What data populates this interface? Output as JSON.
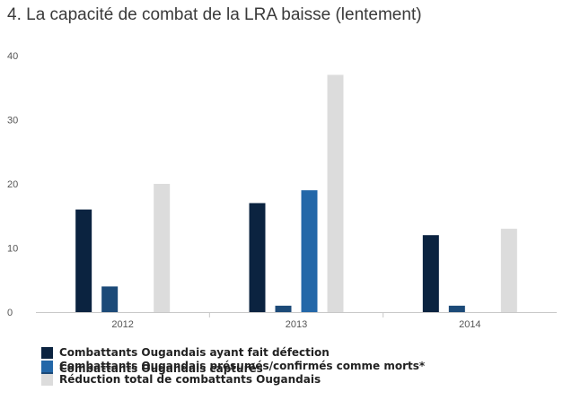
{
  "chart_data": {
    "type": "bar",
    "title": "4. La capacité de combat de la LRA baisse (lentement)",
    "categories": [
      "2012",
      "2013",
      "2014"
    ],
    "ylim": [
      0,
      40
    ],
    "yticks": [
      0,
      10,
      20,
      30,
      40
    ],
    "grid": false,
    "legend_position": "bottom",
    "series": [
      {
        "name": "Combattants Ougandais ayant fait défection",
        "color": "#0b2340",
        "values": [
          16,
          17,
          12
        ]
      },
      {
        "name": "Combattants Ougandais capturés",
        "color": "#1c4a78",
        "values": [
          4,
          1,
          1
        ]
      },
      {
        "name": "Combattants Ougandais présumés/confirmés comme morts*",
        "color": "#2367a8",
        "values": [
          0,
          19,
          0
        ]
      },
      {
        "name": "Réduction total de combattants Ougandais",
        "color": "#dcdcdc",
        "values": [
          20,
          37,
          13
        ]
      }
    ]
  }
}
